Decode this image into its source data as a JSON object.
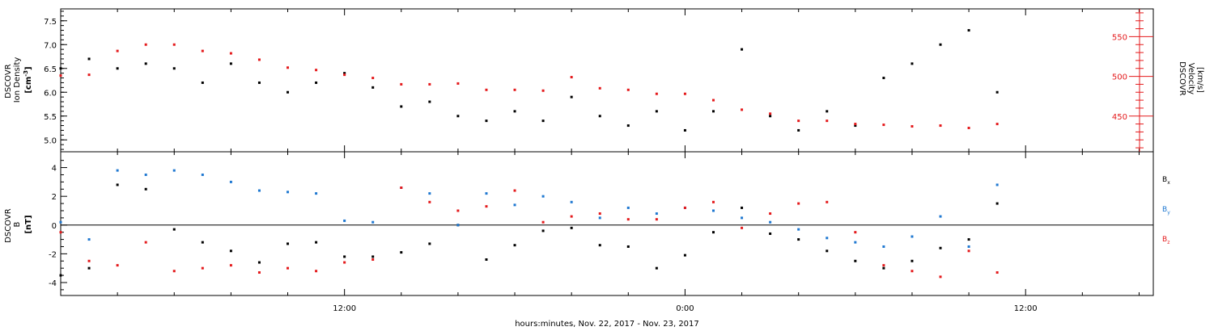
{
  "xlabel": "hours:minutes, Nov. 22, 2017 - Nov. 23, 2017",
  "x_ticks": [
    {
      "t": 12,
      "label": "12:00"
    },
    {
      "t": 24,
      "label": "0:00"
    },
    {
      "t": 36,
      "label": "12:00"
    }
  ],
  "colors": {
    "black": "#000000",
    "red": "#e41a1c",
    "blue": "#1f78d1"
  },
  "chart_data": [
    {
      "type": "scatter",
      "panel": "top",
      "xlim": [
        2.0,
        40.5
      ],
      "grid": false,
      "left_axis": {
        "label_lines": [
          "DSCOVR",
          "Ion Density"
        ],
        "unit": "[cm",
        "unit_sup": "-3",
        "unit_tail": "]",
        "ylim": [
          4.75,
          7.75
        ],
        "ticks": [
          5.0,
          5.5,
          6.0,
          6.5,
          7.0,
          7.5
        ],
        "tick_labels": [
          "5.0",
          "5.5",
          "6.0",
          "6.5",
          "7.0",
          "7.5"
        ]
      },
      "right_axis": {
        "label_lines": [
          "DSCOVR",
          "Velocity",
          "[km/s]"
        ],
        "ylim": [
          405,
          585
        ],
        "ticks": [
          450,
          500,
          550
        ],
        "tick_labels": [
          "450",
          "500",
          "550"
        ],
        "color": "#e41a1c"
      },
      "series": [
        {
          "key": "density",
          "axis": "left",
          "color": "#000000",
          "x": [
            2.0,
            3.0,
            4.0,
            5.0,
            6.0,
            7.0,
            8.0,
            9.0,
            10.0,
            11.0,
            12.0,
            13.0,
            14.0,
            15.0,
            16.0,
            17.0,
            18.0,
            19.0,
            20.0,
            21.0,
            22.0,
            23.0,
            24.0,
            25.0,
            26.0,
            27.0,
            28.0,
            29.0,
            30.0,
            31.0,
            32.0,
            33.0,
            34.0,
            35.0
          ],
          "y": [
            6.5,
            6.7,
            6.5,
            6.6,
            6.5,
            6.2,
            6.6,
            6.2,
            6.0,
            6.2,
            6.4,
            6.1,
            5.7,
            5.8,
            5.5,
            5.4,
            5.6,
            5.4,
            5.9,
            5.5,
            5.3,
            5.6,
            5.2,
            5.6,
            6.9,
            5.5,
            5.2,
            5.6,
            5.3,
            6.3,
            6.6,
            7.0,
            7.3,
            6.0
          ]
        },
        {
          "key": "velocity",
          "axis": "right",
          "color": "#e41a1c",
          "x": [
            2.0,
            3.0,
            4.0,
            5.0,
            6.0,
            7.0,
            8.0,
            9.0,
            10.0,
            11.0,
            12.0,
            13.0,
            14.0,
            15.0,
            16.0,
            17.0,
            18.0,
            19.0,
            20.0,
            21.0,
            22.0,
            23.0,
            24.0,
            25.0,
            26.0,
            27.0,
            28.0,
            29.0,
            30.0,
            31.0,
            32.0,
            33.0,
            34.0,
            35.0
          ],
          "y": [
            501,
            502,
            532,
            540,
            540,
            532,
            529,
            521,
            511,
            508,
            502,
            498,
            490,
            490,
            491,
            483,
            483,
            482,
            499,
            485,
            483,
            478,
            478,
            470,
            458,
            453,
            444,
            444,
            440,
            439,
            437,
            438,
            435,
            440
          ]
        }
      ]
    },
    {
      "type": "scatter",
      "panel": "bottom",
      "xlim": [
        2.0,
        40.5
      ],
      "grid": false,
      "zero_line": true,
      "left_axis": {
        "label_lines": [
          "DSCOVR",
          "B"
        ],
        "unit": "[nT]",
        "ylim": [
          -4.9,
          5.1
        ],
        "ticks": [
          -4,
          -2,
          0,
          2,
          4
        ],
        "tick_labels": [
          "-4",
          "-2",
          "0",
          "2",
          "4"
        ]
      },
      "series": [
        {
          "key": "bx",
          "name": "B",
          "sub": "x",
          "color": "#000000",
          "x": [
            2.0,
            3.0,
            4.0,
            5.0,
            6.0,
            7.0,
            8.0,
            9.0,
            10.0,
            11.0,
            12.0,
            13.0,
            14.0,
            15.0,
            16.0,
            17.0,
            18.0,
            19.0,
            20.0,
            21.0,
            22.0,
            23.0,
            24.0,
            25.0,
            26.0,
            27.0,
            28.0,
            29.0,
            30.0,
            31.0,
            32.0,
            33.0,
            34.0,
            35.0
          ],
          "y": [
            -3.5,
            -3.0,
            2.8,
            2.5,
            -0.3,
            -1.2,
            -1.8,
            -2.6,
            -1.3,
            -1.2,
            -2.2,
            -2.2,
            -1.9,
            -1.3,
            0.0,
            -2.4,
            -1.4,
            -0.4,
            -0.2,
            -1.4,
            -1.5,
            -3.0,
            -2.1,
            -0.5,
            1.2,
            -0.6,
            -1.0,
            -1.8,
            -2.5,
            -3.0,
            -2.5,
            -1.6,
            -1.0,
            1.5
          ]
        },
        {
          "key": "by",
          "name": "B",
          "sub": "y",
          "color": "#1f78d1",
          "x": [
            2.0,
            3.0,
            4.0,
            5.0,
            6.0,
            7.0,
            8.0,
            9.0,
            10.0,
            11.0,
            12.0,
            13.0,
            14.0,
            15.0,
            16.0,
            17.0,
            18.0,
            19.0,
            20.0,
            21.0,
            22.0,
            23.0,
            24.0,
            25.0,
            26.0,
            27.0,
            28.0,
            29.0,
            30.0,
            31.0,
            32.0,
            33.0,
            34.0,
            35.0
          ],
          "y": [
            0.2,
            -1.0,
            3.8,
            3.5,
            3.8,
            3.5,
            3.0,
            2.4,
            2.3,
            2.2,
            0.3,
            0.2,
            2.6,
            2.2,
            0.0,
            2.2,
            1.4,
            2.0,
            1.6,
            0.5,
            1.2,
            0.8,
            1.2,
            1.0,
            0.5,
            0.2,
            -0.3,
            -0.9,
            -1.2,
            -1.5,
            -0.8,
            0.6,
            -1.5,
            2.8
          ]
        },
        {
          "key": "bz",
          "name": "B",
          "sub": "z",
          "color": "#e41a1c",
          "x": [
            2.0,
            3.0,
            4.0,
            5.0,
            6.0,
            7.0,
            8.0,
            9.0,
            10.0,
            11.0,
            12.0,
            13.0,
            14.0,
            15.0,
            16.0,
            17.0,
            18.0,
            19.0,
            20.0,
            21.0,
            22.0,
            23.0,
            24.0,
            25.0,
            26.0,
            27.0,
            28.0,
            29.0,
            30.0,
            31.0,
            32.0,
            33.0,
            34.0,
            35.0
          ],
          "y": [
            -0.5,
            -2.5,
            -2.8,
            -1.2,
            -3.2,
            -3.0,
            -2.8,
            -3.3,
            -3.0,
            -3.2,
            -2.6,
            -2.4,
            2.6,
            1.6,
            1.0,
            1.3,
            2.4,
            0.2,
            0.6,
            0.8,
            0.4,
            0.4,
            1.2,
            1.6,
            -0.2,
            0.8,
            1.5,
            1.6,
            -0.5,
            -2.8,
            -3.2,
            -3.6,
            -1.8,
            -3.3
          ]
        }
      ]
    }
  ]
}
